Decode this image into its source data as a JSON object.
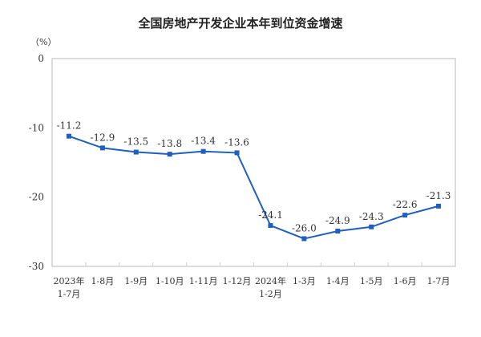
{
  "chart_data": {
    "type": "line",
    "title": "全国房地产开发企业本年到位资金增速",
    "ylabel": "（%）",
    "xlabel": "",
    "categories": [
      "2023年\n1-7月",
      "1-8月",
      "1-9月",
      "1-10月",
      "1-11月",
      "1-12月",
      "2024年\n1-2月",
      "1-3月",
      "1-4月",
      "1-5月",
      "1-6月",
      "1-7月"
    ],
    "values": [
      -11.2,
      -12.9,
      -13.5,
      -13.8,
      -13.4,
      -13.6,
      -24.1,
      -26.0,
      -24.9,
      -24.3,
      -22.6,
      -21.3
    ],
    "data_labels": [
      "-11.2",
      "-12.9",
      "-13.5",
      "-13.8",
      "-13.4",
      "-13.6",
      "-24.1",
      "-26.0",
      "-24.9",
      "-24.3",
      "-22.6",
      "-21.3"
    ],
    "yticks": [
      0,
      -10,
      -20,
      -30
    ],
    "ylim": [
      -30,
      0
    ],
    "grid": false,
    "legend": "none",
    "line_color": "#1f5fbf",
    "marker": "square"
  }
}
